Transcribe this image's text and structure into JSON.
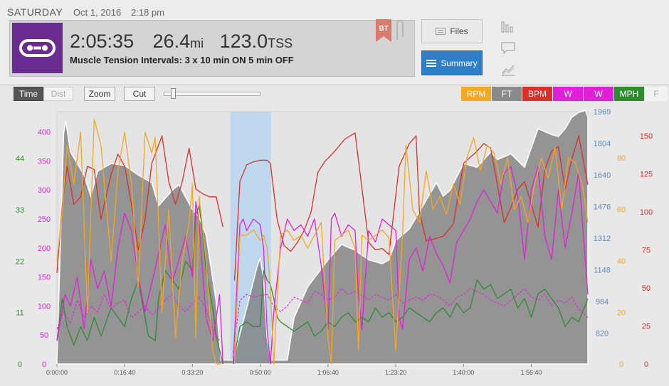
{
  "header": {
    "day": "SATURDAY",
    "date": "Oct 1, 2016",
    "time": "2:18 pm",
    "duration": "2:05:35",
    "distance": "26.4",
    "distance_unit": "mi",
    "tss": "123.0",
    "tss_unit": "TSS",
    "workout_title": "Muscle Tension Intervals:  3 x 10 min ON 5 min OFF",
    "bt_label": "BT",
    "files_label": "Files",
    "summary_label": "Summary"
  },
  "toolbar": {
    "time_label": "Time",
    "dist_label": "Dist",
    "zoom_label": "Zoom",
    "cut_label": "Cut",
    "slider_fraction": 0.1
  },
  "colors": {
    "rpm": "#f5a623",
    "ft": "#8a8a8a",
    "bpm": "#d9302a",
    "watts": "#e020d8",
    "mph": "#2e8b2e",
    "accent": "#2e7fc8",
    "brand": "#6a2c91"
  },
  "icons": [
    "chain-logo-icon",
    "bookmark-flag-icon",
    "paperclip-icon",
    "files-icon",
    "summary-list-icon",
    "bar-chart-icon",
    "comment-icon",
    "trend-chart-icon"
  ],
  "chart_data": {
    "type": "line",
    "x_unit": "elapsed time",
    "x_ticks": [
      "0:00:00",
      "0:16:40",
      "0:33:20",
      "0:50:00",
      "1:06:40",
      "1:23:20",
      "1:40:00",
      "1:56:40"
    ],
    "x_tick_seconds": [
      0,
      1000,
      2000,
      3000,
      4000,
      5000,
      6000,
      7000
    ],
    "xlim_seconds": [
      0,
      7835
    ],
    "selection_seconds": [
      2560,
      3160
    ],
    "legend": [
      {
        "label": "RPM",
        "color": "#f5a623",
        "text_color": "#ffffff"
      },
      {
        "label": "FT",
        "color": "#8a8a8a",
        "text_color": "#ffffff"
      },
      {
        "label": "BPM",
        "color": "#d9302a",
        "text_color": "#ffffff"
      },
      {
        "label": "W",
        "color": "#e020d8",
        "text_color": "#ffffff"
      },
      {
        "label": "W",
        "color": "#e020d8",
        "text_color": "#ffffff"
      },
      {
        "label": "MPH",
        "color": "#2e8b2e",
        "text_color": "#ffffff"
      },
      {
        "label": "F",
        "color": "#f2f2f2",
        "text_color": "#aaaaaa"
      }
    ],
    "axes": {
      "mph": {
        "ticks": [
          "0",
          "11",
          "22",
          "33",
          "44"
        ],
        "values": [
          0,
          11,
          22,
          33,
          44
        ],
        "ylim": [
          0,
          54
        ]
      },
      "watts": {
        "ticks": [
          "0",
          "50",
          "100",
          "150",
          "200",
          "250",
          "300",
          "350",
          "400"
        ],
        "values": [
          0,
          50,
          100,
          150,
          200,
          250,
          300,
          350,
          400
        ],
        "ylim": [
          0,
          435
        ]
      },
      "ft": {
        "ticks": [
          "820",
          "984",
          "1148",
          "1312",
          "1476",
          "1640",
          "1804",
          "1969"
        ],
        "values": [
          820,
          984,
          1148,
          1312,
          1476,
          1640,
          1804,
          1969
        ],
        "ylim": [
          660,
          1969
        ]
      },
      "rpm": {
        "ticks": [
          "0",
          "20",
          "40",
          "60",
          "80"
        ],
        "values": [
          0,
          20,
          40,
          60,
          80
        ],
        "ylim": [
          0,
          98
        ]
      },
      "bpm": {
        "ticks": [
          "0",
          "25",
          "50",
          "75",
          "100",
          "125",
          "150"
        ],
        "values": [
          0,
          25,
          50,
          75,
          100,
          125,
          150
        ],
        "ylim": [
          0,
          166
        ]
      }
    },
    "series": [
      {
        "key": "ft",
        "name": "FT",
        "x": [
          0,
          100,
          130,
          200,
          400,
          500,
          600,
          800,
          1000,
          1200,
          1400,
          1500,
          1700,
          1800,
          2000,
          2100,
          2200,
          2350,
          2420,
          2500,
          2560,
          2600,
          2800,
          2950,
          3000,
          3050,
          3100,
          3150,
          3200,
          3300,
          3350,
          3400,
          3500,
          3700,
          4000,
          4200,
          4400,
          4600,
          4800,
          4900,
          5000,
          5200,
          5300,
          5400,
          5600,
          5700,
          5800,
          6000,
          6200,
          6400,
          6500,
          6700,
          6900,
          7000,
          7100,
          7300,
          7400,
          7500,
          7600,
          7700,
          7800,
          7835
        ],
        "values": [
          680,
          1860,
          1920,
          1760,
          1640,
          1530,
          1660,
          1700,
          1690,
          1640,
          1600,
          1480,
          1560,
          1590,
          1460,
          1420,
          1330,
          980,
          680,
          680,
          680,
          680,
          950,
          1160,
          1210,
          1100,
          800,
          680,
          680,
          680,
          680,
          680,
          900,
          1060,
          1200,
          1280,
          1250,
          1200,
          1180,
          1200,
          1300,
          1360,
          1420,
          1480,
          1600,
          1530,
          1560,
          1700,
          1680,
          1760,
          1720,
          1750,
          1680,
          1780,
          1880,
          1850,
          1840,
          1880,
          1940,
          1965,
          1975,
          1940
        ]
      },
      {
        "key": "bpm",
        "name": "BPM",
        "x": [
          0,
          80,
          150,
          250,
          350,
          450,
          550,
          650,
          800,
          900,
          1000,
          1100,
          1200,
          1300,
          1400,
          1450,
          1550,
          1650,
          1750,
          1850,
          1950,
          2050,
          2150,
          2250,
          2350,
          2450,
          2520,
          2560,
          2620,
          2700,
          2800,
          2900,
          3000,
          3100,
          3150,
          3250,
          3350,
          3450,
          3550,
          3650,
          3750,
          3850,
          3950,
          4100,
          4250,
          4400,
          4600,
          4700,
          4800,
          4900,
          5050,
          5200,
          5300,
          5350,
          5450,
          5550,
          5700,
          5850,
          6000,
          6200,
          6300,
          6400,
          6500,
          6600,
          6700,
          6800,
          6900,
          7000,
          7100,
          7200,
          7300,
          7400,
          7500,
          7600,
          7700,
          7835
        ],
        "values": [
          60,
          105,
          130,
          105,
          110,
          130,
          128,
          95,
          125,
          138,
          130,
          105,
          75,
          95,
          132,
          138,
          150,
          120,
          105,
          120,
          142,
          115,
          112,
          110,
          110,
          90,
          null,
          null,
          55,
          120,
          131,
          133,
          134,
          134,
          132,
          95,
          78,
          74,
          80,
          88,
          100,
          126,
          133,
          140,
          148,
          152,
          80,
          75,
          76,
          72,
          130,
          145,
          150,
          100,
          81,
          82,
          84,
          92,
          132,
          140,
          145,
          142,
          118,
          93,
          103,
          115,
          120,
          105,
          90,
          128,
          140,
          143,
          115,
          135,
          150,
          118
        ]
      },
      {
        "key": "mph",
        "name": "MPH",
        "x": [
          0,
          80,
          150,
          250,
          350,
          450,
          550,
          650,
          800,
          900,
          1000,
          1100,
          1200,
          1300,
          1350,
          1450,
          1500,
          1600,
          1700,
          1800,
          1900,
          2000,
          2050,
          2100,
          2150,
          2200,
          2300,
          2350,
          2400,
          2450,
          2520,
          2560,
          2600,
          2700,
          2800,
          2900,
          3000,
          3050,
          3100,
          3150,
          3200,
          3250,
          3300,
          3400,
          3500,
          3600,
          3700,
          3800,
          3900,
          4000,
          4100,
          4200,
          4300,
          4400,
          4500,
          4600,
          4700,
          4800,
          4900,
          5000,
          5100,
          5200,
          5300,
          5400,
          5500,
          5600,
          5700,
          5800,
          5900,
          6000,
          6100,
          6200,
          6300,
          6400,
          6500,
          6600,
          6700,
          6800,
          6900,
          7000,
          7100,
          7200,
          7300,
          7400,
          7500,
          7600,
          7700,
          7835
        ],
        "values": [
          5,
          14,
          8,
          4,
          8,
          5,
          10,
          6,
          12,
          10,
          8,
          14,
          18,
          10,
          6,
          5,
          14,
          20,
          18,
          16,
          22,
          20,
          32,
          34,
          28,
          20,
          12,
          6,
          3,
          0,
          null,
          null,
          0,
          8,
          9,
          8,
          8,
          20,
          18,
          17,
          14,
          10,
          9,
          8,
          7,
          8,
          9,
          6,
          7,
          9,
          8,
          10,
          11,
          9,
          10,
          9,
          12,
          10,
          11,
          9,
          10,
          12,
          11,
          10,
          9,
          11,
          12,
          10,
          13,
          11,
          12,
          18,
          16,
          17,
          14,
          15,
          16,
          12,
          14,
          10,
          15,
          16,
          14,
          12,
          8,
          10,
          9,
          14
        ]
      },
      {
        "key": "watts",
        "name": "W",
        "x": [
          0,
          60,
          120,
          200,
          300,
          400,
          500,
          600,
          700,
          800,
          900,
          1000,
          1100,
          1200,
          1300,
          1400,
          1500,
          1600,
          1700,
          1800,
          1900,
          2000,
          2050,
          2100,
          2200,
          2300,
          2400,
          2450,
          2520,
          2560,
          2600,
          2700,
          2750,
          2800,
          2900,
          3000,
          3050,
          3100,
          3150,
          3200,
          3300,
          3400,
          3500,
          3600,
          3700,
          3800,
          3900,
          4000,
          4050,
          4100,
          4200,
          4300,
          4400,
          4450,
          4500,
          4600,
          4700,
          4800,
          4900,
          5000,
          5050,
          5100,
          5200,
          5300,
          5400,
          5500,
          5600,
          5700,
          5800,
          5900,
          6000,
          6100,
          6200,
          6300,
          6400,
          6500,
          6600,
          6700,
          6800,
          6900,
          7000,
          7100,
          7200,
          7300,
          7400,
          7500,
          7600,
          7700,
          7835
        ],
        "values": [
          40,
          80,
          120,
          100,
          150,
          60,
          180,
          130,
          160,
          100,
          200,
          260,
          230,
          150,
          90,
          140,
          190,
          240,
          140,
          180,
          220,
          150,
          280,
          240,
          80,
          40,
          120,
          0,
          null,
          null,
          0,
          240,
          250,
          230,
          250,
          240,
          200,
          60,
          0,
          90,
          200,
          250,
          230,
          240,
          220,
          250,
          170,
          60,
          250,
          260,
          220,
          240,
          230,
          120,
          60,
          230,
          210,
          250,
          240,
          230,
          80,
          60,
          180,
          200,
          160,
          220,
          190,
          170,
          140,
          210,
          230,
          250,
          280,
          300,
          280,
          260,
          330,
          340,
          290,
          180,
          300,
          340,
          220,
          180,
          300,
          200,
          260,
          330,
          120
        ]
      },
      {
        "key": "watts2",
        "name": "W",
        "x": [
          0,
          100,
          200,
          300,
          400,
          500,
          600,
          700,
          800,
          900,
          1000,
          1100,
          1200,
          1300,
          1400,
          1500,
          1600,
          1700,
          1800,
          1900,
          2000,
          2100,
          2200,
          2300,
          2400,
          2520,
          2560,
          2600,
          2700,
          2800,
          2900,
          3000,
          3100,
          3200,
          3300,
          3400,
          3500,
          3600,
          3700,
          3800,
          3900,
          4000,
          4100,
          4200,
          4300,
          4400,
          4500,
          4600,
          4700,
          4800,
          4900,
          5000,
          5100,
          5200,
          5300,
          5400,
          5500,
          5600,
          5700,
          5800,
          5900,
          6000,
          6100,
          6200,
          6300,
          6400,
          6500,
          6600,
          6700,
          6800,
          6900,
          7000,
          7100,
          7200,
          7300,
          7400,
          7500,
          7600,
          7700,
          7835
        ],
        "values": [
          60,
          90,
          70,
          110,
          80,
          100,
          90,
          120,
          95,
          105,
          110,
          80,
          90,
          100,
          85,
          95,
          110,
          120,
          100,
          90,
          105,
          115,
          95,
          60,
          40,
          null,
          null,
          20,
          110,
          120,
          115,
          118,
          120,
          100,
          90,
          100,
          115,
          110,
          105,
          125,
          120,
          110,
          115,
          130,
          120,
          125,
          118,
          110,
          120,
          115,
          110,
          120,
          105,
          110,
          115,
          110,
          120,
          118,
          110,
          100,
          115,
          120,
          130,
          125,
          120,
          110,
          105,
          100,
          110,
          120,
          130,
          115,
          110,
          120,
          100,
          110,
          105,
          115,
          95,
          80
        ]
      },
      {
        "key": "rpm",
        "name": "RPM",
        "x": [
          0,
          80,
          150,
          250,
          350,
          450,
          550,
          650,
          800,
          900,
          1000,
          1100,
          1200,
          1300,
          1400,
          1450,
          1550,
          1650,
          1750,
          1850,
          1950,
          2000,
          2050,
          2100,
          2200,
          2300,
          2350,
          2420,
          2520,
          2560,
          2620,
          2700,
          2800,
          2900,
          3000,
          3050,
          3100,
          3150,
          3200,
          3300,
          3400,
          3500,
          3600,
          3700,
          3800,
          3900,
          4000,
          4050,
          4100,
          4200,
          4300,
          4400,
          4450,
          4500,
          4600,
          4700,
          4800,
          4900,
          5000,
          5100,
          5150,
          5250,
          5350,
          5450,
          5550,
          5650,
          5750,
          5850,
          5950,
          6050,
          6150,
          6250,
          6350,
          6450,
          6550,
          6650,
          6750,
          6850,
          6950,
          7050,
          7150,
          7250,
          7350,
          7450,
          7550,
          7650,
          7750,
          7835
        ],
        "values": [
          40,
          60,
          85,
          70,
          90,
          20,
          95,
          85,
          40,
          75,
          90,
          70,
          30,
          90,
          82,
          88,
          20,
          60,
          10,
          40,
          55,
          70,
          10,
          65,
          40,
          5,
          0,
          0,
          null,
          null,
          0,
          50,
          50,
          52,
          48,
          50,
          45,
          30,
          0,
          50,
          52,
          48,
          50,
          45,
          50,
          55,
          10,
          0,
          48,
          50,
          52,
          45,
          5,
          50,
          48,
          50,
          52,
          49,
          5,
          50,
          85,
          60,
          55,
          75,
          60,
          65,
          58,
          70,
          62,
          80,
          88,
          75,
          85,
          82,
          70,
          80,
          60,
          65,
          55,
          70,
          80,
          72,
          84,
          60,
          80,
          78,
          70,
          55
        ]
      }
    ]
  }
}
